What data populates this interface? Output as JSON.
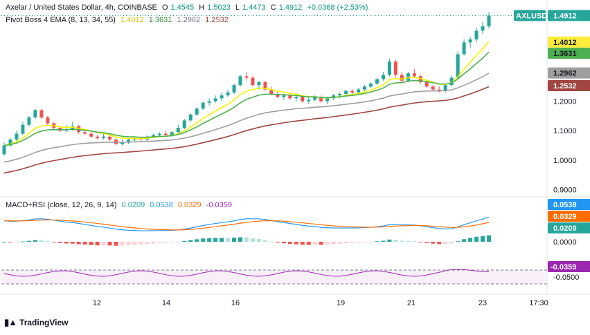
{
  "header": {
    "symbol_title": "Axelar / United States Dollar, 4h, COINBASE",
    "open_label": "O",
    "open": "1.4545",
    "high_label": "H",
    "high": "1.5023",
    "low_label": "L",
    "low": "1.4473",
    "close_label": "C",
    "close": "1.4912",
    "change": "+0.0368 (+2.53%)",
    "ema_title": "Pivot Boss 4 EMA (8, 13, 34, 55)",
    "ema_values": [
      "1.4012",
      "1.3631",
      "1.2962",
      "1.2532"
    ]
  },
  "macd_header": {
    "title": "MACD+RSI (close, 12, 26, 9, 14)",
    "values": [
      "0.0209",
      "0.0538",
      "0.0329",
      "-0.0359"
    ]
  },
  "colors": {
    "up": "#26a69a",
    "down": "#ef5350",
    "ema8": "#f5f500",
    "ema13": "#4caf50",
    "ema34": "#9e9e9e",
    "ema55": "#a0453f",
    "macd": "#2196f3",
    "signal": "#ff6d00",
    "rsi": "#9c27b0",
    "hist_up_strong": "#26a69a",
    "hist_up_weak": "#b2dfdb",
    "hist_down_strong": "#ef5350",
    "hist_down_weak": "#ffcdd2"
  },
  "price_badge": "AXLUSD",
  "price_badge_value": "1.4912",
  "x_axis_labels": [
    "12",
    "14",
    "16",
    "19",
    "21",
    "23",
    "17:30"
  ],
  "watermark": "TradingView",
  "chart_data": {
    "type": "candlestick",
    "instrument": "AXLUSD",
    "interval": "4h",
    "price_axis": {
      "ticks": [
        "1.2000",
        "1.1000",
        "1.0000",
        "0.9000"
      ],
      "ylim": [
        0.88,
        1.53
      ]
    },
    "last_values": {
      "close": 1.4912,
      "ema8": 1.4012,
      "ema13": 1.3631,
      "ema34": 1.2962,
      "ema55": 1.2532
    },
    "candles": [
      [
        1.02,
        1.06,
        1.015,
        1.05
      ],
      [
        1.05,
        1.075,
        1.045,
        1.07
      ],
      [
        1.07,
        1.1,
        1.065,
        1.09
      ],
      [
        1.09,
        1.13,
        1.085,
        1.12
      ],
      [
        1.12,
        1.15,
        1.115,
        1.145
      ],
      [
        1.145,
        1.175,
        1.14,
        1.17
      ],
      [
        1.17,
        1.175,
        1.14,
        1.145
      ],
      [
        1.145,
        1.15,
        1.12,
        1.125
      ],
      [
        1.125,
        1.13,
        1.105,
        1.11
      ],
      [
        1.11,
        1.115,
        1.095,
        1.1
      ],
      [
        1.1,
        1.12,
        1.095,
        1.105
      ],
      [
        1.105,
        1.13,
        1.1,
        1.115
      ],
      [
        1.115,
        1.12,
        1.09,
        1.095
      ],
      [
        1.095,
        1.1,
        1.085,
        1.09
      ],
      [
        1.09,
        1.095,
        1.075,
        1.08
      ],
      [
        1.08,
        1.085,
        1.07,
        1.075
      ],
      [
        1.075,
        1.09,
        1.07,
        1.08
      ],
      [
        1.08,
        1.085,
        1.065,
        1.07
      ],
      [
        1.07,
        1.075,
        1.05,
        1.055
      ],
      [
        1.055,
        1.07,
        1.05,
        1.06
      ],
      [
        1.06,
        1.075,
        1.055,
        1.07
      ],
      [
        1.07,
        1.08,
        1.065,
        1.075
      ],
      [
        1.075,
        1.08,
        1.065,
        1.07
      ],
      [
        1.07,
        1.085,
        1.065,
        1.08
      ],
      [
        1.08,
        1.09,
        1.075,
        1.085
      ],
      [
        1.085,
        1.095,
        1.08,
        1.09
      ],
      [
        1.09,
        1.1,
        1.08,
        1.085
      ],
      [
        1.085,
        1.1,
        1.08,
        1.095
      ],
      [
        1.095,
        1.12,
        1.09,
        1.11
      ],
      [
        1.11,
        1.14,
        1.105,
        1.135
      ],
      [
        1.135,
        1.16,
        1.13,
        1.155
      ],
      [
        1.155,
        1.18,
        1.15,
        1.175
      ],
      [
        1.175,
        1.2,
        1.17,
        1.195
      ],
      [
        1.195,
        1.21,
        1.185,
        1.2
      ],
      [
        1.2,
        1.22,
        1.195,
        1.21
      ],
      [
        1.21,
        1.23,
        1.2,
        1.22
      ],
      [
        1.22,
        1.24,
        1.215,
        1.23
      ],
      [
        1.23,
        1.26,
        1.225,
        1.255
      ],
      [
        1.255,
        1.29,
        1.25,
        1.285
      ],
      [
        1.285,
        1.3,
        1.27,
        1.28
      ],
      [
        1.28,
        1.285,
        1.25,
        1.255
      ],
      [
        1.255,
        1.27,
        1.24,
        1.265
      ],
      [
        1.265,
        1.27,
        1.235,
        1.24
      ],
      [
        1.24,
        1.25,
        1.22,
        1.225
      ],
      [
        1.225,
        1.235,
        1.21,
        1.215
      ],
      [
        1.215,
        1.225,
        1.205,
        1.22
      ],
      [
        1.22,
        1.23,
        1.205,
        1.21
      ],
      [
        1.21,
        1.22,
        1.2,
        1.215
      ],
      [
        1.215,
        1.22,
        1.195,
        1.2
      ],
      [
        1.2,
        1.215,
        1.19,
        1.205
      ],
      [
        1.205,
        1.22,
        1.2,
        1.215
      ],
      [
        1.215,
        1.22,
        1.195,
        1.2
      ],
      [
        1.2,
        1.215,
        1.19,
        1.21
      ],
      [
        1.21,
        1.225,
        1.205,
        1.22
      ],
      [
        1.22,
        1.23,
        1.21,
        1.225
      ],
      [
        1.225,
        1.24,
        1.22,
        1.235
      ],
      [
        1.235,
        1.24,
        1.225,
        1.23
      ],
      [
        1.23,
        1.245,
        1.225,
        1.24
      ],
      [
        1.24,
        1.255,
        1.235,
        1.25
      ],
      [
        1.25,
        1.265,
        1.245,
        1.26
      ],
      [
        1.26,
        1.28,
        1.255,
        1.275
      ],
      [
        1.275,
        1.3,
        1.27,
        1.29
      ],
      [
        1.29,
        1.345,
        1.285,
        1.335
      ],
      [
        1.335,
        1.34,
        1.28,
        1.29
      ],
      [
        1.29,
        1.3,
        1.26,
        1.27
      ],
      [
        1.27,
        1.3,
        1.265,
        1.295
      ],
      [
        1.295,
        1.31,
        1.28,
        1.285
      ],
      [
        1.285,
        1.29,
        1.26,
        1.265
      ],
      [
        1.265,
        1.27,
        1.245,
        1.25
      ],
      [
        1.25,
        1.255,
        1.235,
        1.24
      ],
      [
        1.24,
        1.25,
        1.23,
        1.235
      ],
      [
        1.235,
        1.26,
        1.23,
        1.255
      ],
      [
        1.255,
        1.29,
        1.25,
        1.28
      ],
      [
        1.28,
        1.37,
        1.275,
        1.36
      ],
      [
        1.36,
        1.41,
        1.355,
        1.4
      ],
      [
        1.4,
        1.42,
        1.38,
        1.41
      ],
      [
        1.41,
        1.45,
        1.4,
        1.44
      ],
      [
        1.44,
        1.47,
        1.43,
        1.4545
      ],
      [
        1.4545,
        1.5023,
        1.4473,
        1.4912
      ]
    ],
    "indicator": {
      "name": "MACD+RSI",
      "params": "close, 12, 26, 9, 14",
      "histogram": 0.0209,
      "macd": 0.0538,
      "signal": 0.0329,
      "rsi_line": -0.0359,
      "axis_ticks": [
        "0.0000",
        "-0.0500"
      ]
    }
  }
}
